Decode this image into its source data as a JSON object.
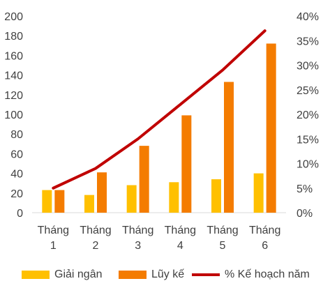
{
  "chart_data": {
    "type": "bar",
    "categories": [
      [
        "Tháng",
        "1"
      ],
      [
        "Tháng",
        "2"
      ],
      [
        "Tháng",
        "3"
      ],
      [
        "Tháng",
        "4"
      ],
      [
        "Tháng",
        "5"
      ],
      [
        "Tháng",
        "6"
      ]
    ],
    "series": [
      {
        "name": "Giải ngân",
        "type": "bar",
        "axis": "left",
        "color": "#FFC000",
        "values": [
          23,
          18,
          28,
          31,
          34,
          40
        ]
      },
      {
        "name": "Lũy kế",
        "type": "bar",
        "axis": "left",
        "color": "#F47C00",
        "values": [
          23,
          41,
          68,
          99,
          133,
          172
        ]
      },
      {
        "name": "% Kế hoạch năm",
        "type": "line",
        "axis": "right",
        "color": "#C00000",
        "values": [
          5,
          9,
          15,
          22,
          29,
          37
        ]
      }
    ],
    "y_left": {
      "min": 0,
      "max": 200,
      "ticks": [
        "0",
        "20",
        "40",
        "60",
        "80",
        "100",
        "120",
        "140",
        "160",
        "180",
        "200"
      ]
    },
    "y_right": {
      "min": 0,
      "max": 40,
      "ticks": [
        "0%",
        "5%",
        "10%",
        "15%",
        "20%",
        "25%",
        "30%",
        "35%",
        "40%"
      ]
    },
    "title": "",
    "grid": false,
    "legend_position": "bottom"
  }
}
